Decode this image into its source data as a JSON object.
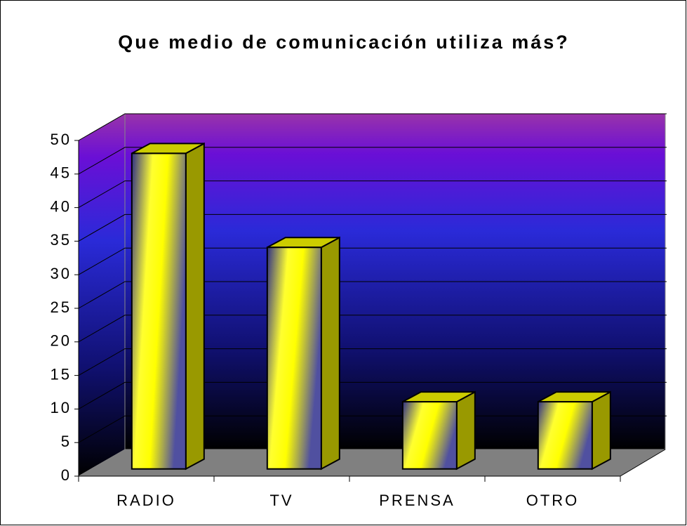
{
  "chart_data": {
    "type": "bar",
    "title": "Que medio de comunicación utiliza más?",
    "categories": [
      "RADIO",
      "TV",
      "PRENSA",
      "OTRO"
    ],
    "values": [
      47,
      33,
      10,
      10
    ],
    "color": "#ffff00",
    "ylim": [
      0,
      50
    ],
    "yticks": [
      0,
      5,
      10,
      15,
      20,
      25,
      30,
      35,
      40,
      45,
      50
    ],
    "grid": true
  }
}
